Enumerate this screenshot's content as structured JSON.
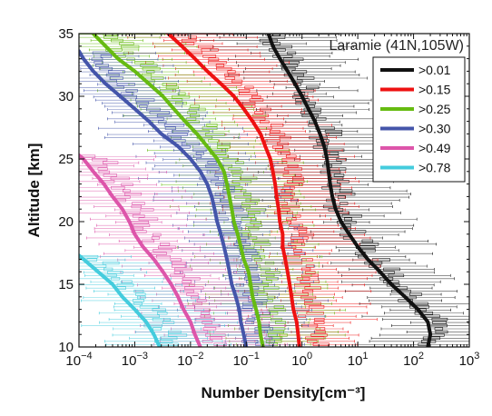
{
  "chart_data": {
    "type": "line",
    "xlabel": "Number Density[cm⁻³]",
    "ylabel": "Altitude [km]",
    "xscale": "log",
    "xlim": [
      0.0001,
      1000
    ],
    "ylim": [
      10,
      35
    ],
    "xticks": [
      {
        "value": 0.0001,
        "base": "10",
        "exp": "−4"
      },
      {
        "value": 0.001,
        "base": "10",
        "exp": "−3"
      },
      {
        "value": 0.01,
        "base": "10",
        "exp": "−2"
      },
      {
        "value": 0.1,
        "base": "10",
        "exp": "−1"
      },
      {
        "value": 1,
        "base": "10",
        "exp": "0"
      },
      {
        "value": 10,
        "base": "10",
        "exp": "1"
      },
      {
        "value": 100,
        "base": "10",
        "exp": "2"
      },
      {
        "value": 1000,
        "base": "10",
        "exp": "3"
      }
    ],
    "yticks": [
      10,
      15,
      20,
      25,
      30,
      35
    ],
    "annotation": "Laramie (41N,105W)",
    "legend_position": "top-right",
    "grid": false,
    "series": [
      {
        "name": ">0.01",
        "color": "#111111",
        "points": [
          [
            180,
            10
          ],
          [
            200,
            11
          ],
          [
            180,
            12
          ],
          [
            120,
            13
          ],
          [
            70,
            14
          ],
          [
            40,
            15
          ],
          [
            25,
            16
          ],
          [
            15,
            17
          ],
          [
            10,
            18
          ],
          [
            7,
            19
          ],
          [
            5,
            20
          ],
          [
            4,
            21
          ],
          [
            3.5,
            22
          ],
          [
            3.2,
            23
          ],
          [
            3,
            24
          ],
          [
            2.8,
            25
          ],
          [
            2.5,
            26
          ],
          [
            2.1,
            27
          ],
          [
            1.7,
            28
          ],
          [
            1.3,
            29
          ],
          [
            1,
            30
          ],
          [
            0.75,
            31
          ],
          [
            0.55,
            32
          ],
          [
            0.4,
            33
          ],
          [
            0.3,
            34
          ],
          [
            0.25,
            35
          ]
        ]
      },
      {
        "name": ">0.15",
        "color": "#ee1111",
        "points": [
          [
            0.9,
            10
          ],
          [
            0.85,
            11
          ],
          [
            0.8,
            12
          ],
          [
            0.7,
            13
          ],
          [
            0.65,
            14
          ],
          [
            0.6,
            15
          ],
          [
            0.55,
            16
          ],
          [
            0.5,
            17
          ],
          [
            0.45,
            18
          ],
          [
            0.45,
            19
          ],
          [
            0.4,
            20
          ],
          [
            0.38,
            21
          ],
          [
            0.35,
            22
          ],
          [
            0.33,
            23
          ],
          [
            0.3,
            24
          ],
          [
            0.27,
            25
          ],
          [
            0.22,
            26
          ],
          [
            0.18,
            27
          ],
          [
            0.13,
            28
          ],
          [
            0.09,
            29
          ],
          [
            0.06,
            30
          ],
          [
            0.035,
            31
          ],
          [
            0.02,
            32
          ],
          [
            0.012,
            33
          ],
          [
            0.007,
            34
          ],
          [
            0.004,
            35
          ]
        ]
      },
      {
        "name": ">0.25",
        "color": "#66bb11",
        "points": [
          [
            0.2,
            10
          ],
          [
            0.18,
            11
          ],
          [
            0.17,
            12
          ],
          [
            0.15,
            13
          ],
          [
            0.13,
            14
          ],
          [
            0.12,
            15
          ],
          [
            0.11,
            16
          ],
          [
            0.09,
            17
          ],
          [
            0.08,
            18
          ],
          [
            0.07,
            19
          ],
          [
            0.06,
            20
          ],
          [
            0.055,
            21
          ],
          [
            0.05,
            22
          ],
          [
            0.045,
            23
          ],
          [
            0.04,
            24
          ],
          [
            0.03,
            25
          ],
          [
            0.02,
            26
          ],
          [
            0.013,
            27
          ],
          [
            0.008,
            28
          ],
          [
            0.005,
            29
          ],
          [
            0.0032,
            30
          ],
          [
            0.0018,
            31
          ],
          [
            0.001,
            32
          ],
          [
            0.0005,
            33
          ],
          [
            0.0003,
            34
          ],
          [
            0.00018,
            35
          ]
        ]
      },
      {
        "name": ">0.30",
        "color": "#4455aa",
        "points": [
          [
            0.1,
            10
          ],
          [
            0.09,
            11
          ],
          [
            0.08,
            12
          ],
          [
            0.075,
            13
          ],
          [
            0.065,
            14
          ],
          [
            0.055,
            15
          ],
          [
            0.05,
            16
          ],
          [
            0.045,
            17
          ],
          [
            0.04,
            18
          ],
          [
            0.035,
            19
          ],
          [
            0.03,
            20
          ],
          [
            0.027,
            21
          ],
          [
            0.024,
            22
          ],
          [
            0.02,
            23
          ],
          [
            0.015,
            24
          ],
          [
            0.01,
            25
          ],
          [
            0.006,
            26
          ],
          [
            0.003,
            27
          ],
          [
            0.0018,
            28
          ],
          [
            0.001,
            29
          ],
          [
            0.00055,
            30
          ],
          [
            0.0003,
            31
          ],
          [
            0.00018,
            32
          ],
          [
            0.00012,
            33
          ],
          [
            0.0001,
            33.6
          ]
        ]
      },
      {
        "name": ">0.49",
        "color": "#dd55aa",
        "points": [
          [
            0.015,
            10
          ],
          [
            0.012,
            11
          ],
          [
            0.01,
            12
          ],
          [
            0.0075,
            13
          ],
          [
            0.006,
            14
          ],
          [
            0.0045,
            15
          ],
          [
            0.0032,
            16
          ],
          [
            0.0022,
            17
          ],
          [
            0.0014,
            18
          ],
          [
            0.001,
            19
          ],
          [
            0.0008,
            20
          ],
          [
            0.0006,
            21
          ],
          [
            0.0004,
            22
          ],
          [
            0.00028,
            23
          ],
          [
            0.00018,
            24
          ],
          [
            0.00012,
            25
          ],
          [
            0.0001,
            25.3
          ]
        ]
      },
      {
        "name": ">0.78",
        "color": "#44ccdd",
        "points": [
          [
            0.0028,
            10
          ],
          [
            0.0022,
            11
          ],
          [
            0.0016,
            12
          ],
          [
            0.001,
            13
          ],
          [
            0.0006,
            14
          ],
          [
            0.0004,
            15
          ],
          [
            0.00022,
            16
          ],
          [
            0.00012,
            17
          ],
          [
            0.0001,
            17.3
          ]
        ]
      }
    ]
  }
}
